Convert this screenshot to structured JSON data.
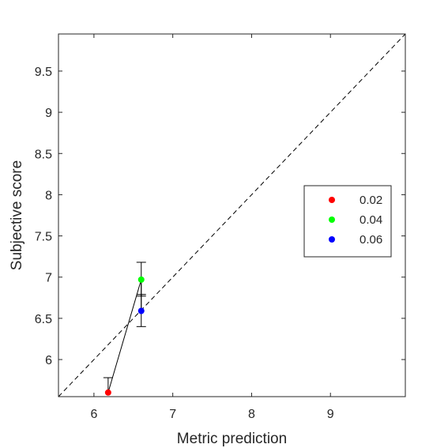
{
  "chart_data": {
    "type": "scatter",
    "xlabel": "Metric prediction",
    "ylabel": "Subjective score",
    "xlim": [
      5.55,
      9.95
    ],
    "ylim": [
      5.55,
      9.95
    ],
    "x_ticks": [
      6,
      7,
      8,
      9
    ],
    "y_ticks": [
      6,
      6.5,
      7,
      7.5,
      8,
      8.5,
      9,
      9.5
    ],
    "x_tick_labels": [
      "6",
      "7",
      "8",
      "9"
    ],
    "y_tick_labels": [
      "6",
      "6.5",
      "7",
      "7.5",
      "8",
      "8.5",
      "9",
      "9.5"
    ],
    "grid": false,
    "box": true,
    "reference_line": {
      "style": "dashed",
      "x": [
        5.55,
        9.95
      ],
      "y": [
        5.55,
        9.95
      ]
    },
    "connecting_line": true,
    "legend": {
      "position": "right",
      "box": true
    },
    "series": [
      {
        "name": "0.02",
        "color": "#ff0000",
        "x": 6.18,
        "y": 5.6,
        "err_low": 5.6,
        "err_high": 5.78,
        "err_cap_low": false
      },
      {
        "name": "0.04",
        "color": "#00ff00",
        "x": 6.6,
        "y": 6.97,
        "err_low": 6.77,
        "err_high": 7.18,
        "err_cap_low": true
      },
      {
        "name": "0.06",
        "color": "#0000ff",
        "x": 6.6,
        "y": 6.59,
        "err_low": 6.4,
        "err_high": 6.79,
        "err_cap_low": true
      }
    ]
  }
}
